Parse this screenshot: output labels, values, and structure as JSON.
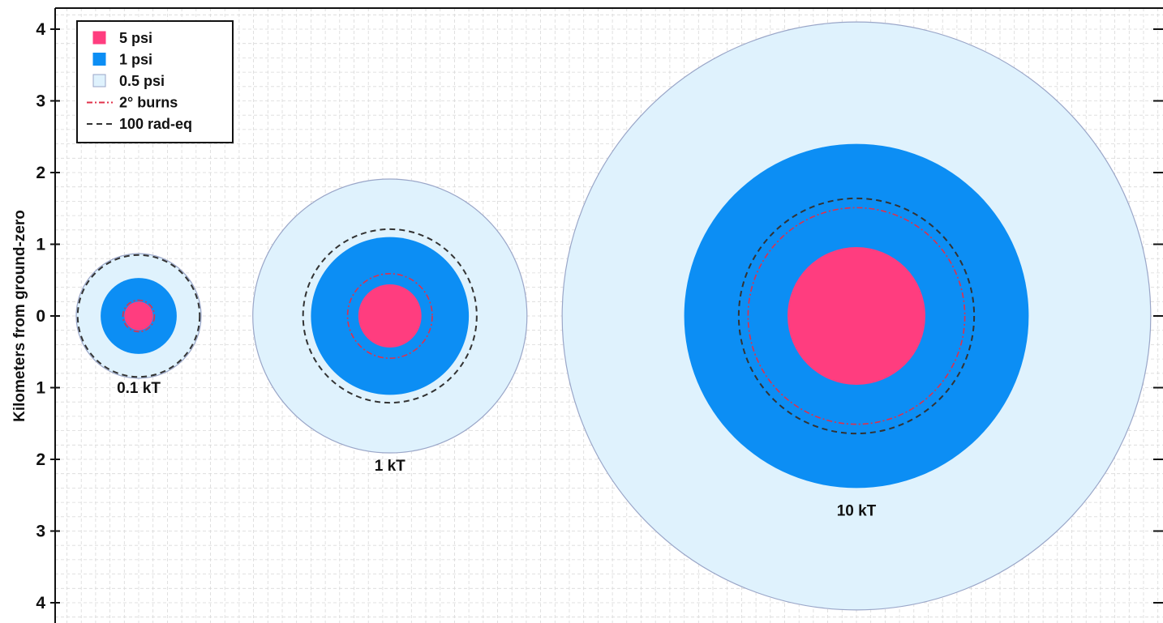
{
  "chart_data": {
    "type": "scatter",
    "title": "",
    "xlabel": "",
    "ylabel": "Kilometers from ground-zero",
    "ylim": [
      -4.2,
      4.2
    ],
    "y_ticks": [
      4,
      3,
      2,
      1,
      0,
      -1,
      -2,
      -3,
      -4
    ],
    "y_tick_labels": [
      "4",
      "3",
      "2",
      "1",
      "0",
      "1",
      "2",
      "3",
      "4"
    ],
    "grid": true,
    "legend_placement": "top-left",
    "colors": {
      "psi5": "#ff3d7f",
      "psi1": "#0c8ef4",
      "psi05": "#dff2fd",
      "psi05_edge": "#9aa6c8",
      "burns": "#e0304a",
      "rad": "#333333",
      "grid": "#d9d9d9"
    },
    "legend": [
      {
        "label": "5 psi",
        "kind": "patch",
        "color_key": "psi5"
      },
      {
        "label": "1 psi",
        "kind": "patch",
        "color_key": "psi1"
      },
      {
        "label": "0.5 psi",
        "kind": "patch",
        "color_key": "psi05"
      },
      {
        "label": "2° burns",
        "kind": "dashdot",
        "color_key": "burns"
      },
      {
        "label": "100 rad-eq",
        "kind": "dashed",
        "color_key": "rad"
      }
    ],
    "series": [
      {
        "label": "0.1 kT",
        "center_km": 0.0,
        "psi5_km": 0.2,
        "psi1_km": 0.53,
        "psi05_km": 0.87,
        "burns_km": 0.22,
        "rad_km": 0.85
      },
      {
        "label": "1 kT",
        "center_km": 3.5,
        "psi5_km": 0.44,
        "psi1_km": 1.1,
        "psi05_km": 1.91,
        "burns_km": 0.59,
        "rad_km": 1.21
      },
      {
        "label": "10 kT",
        "center_km": 10.0,
        "psi5_km": 0.96,
        "psi1_km": 2.4,
        "psi05_km": 4.1,
        "burns_km": 1.51,
        "rad_km": 1.64
      }
    ]
  }
}
